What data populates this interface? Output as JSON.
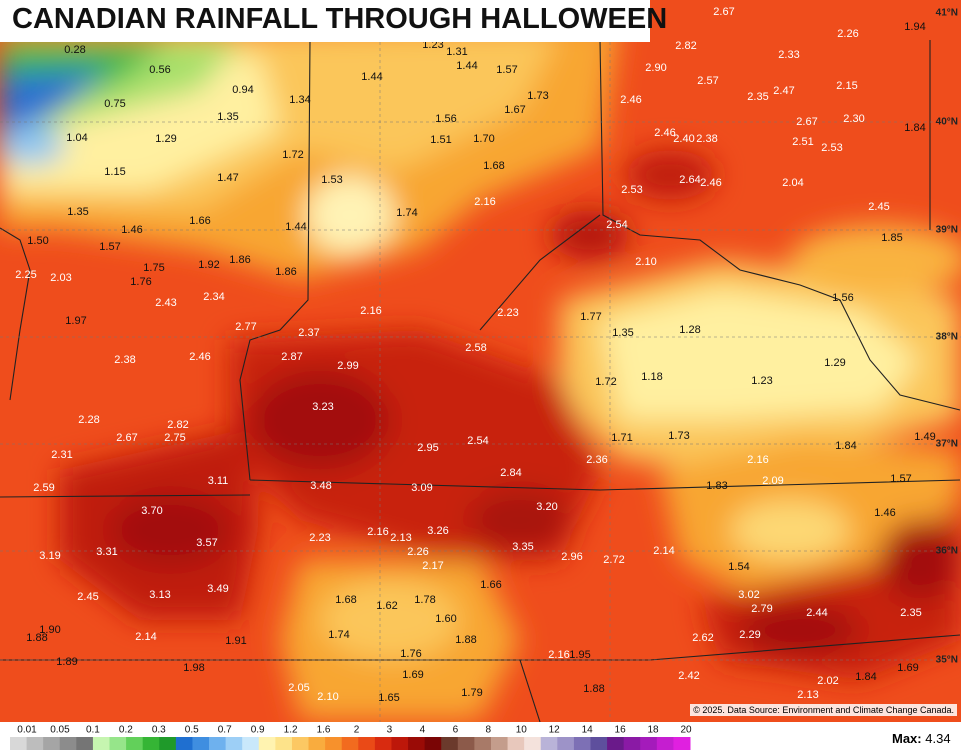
{
  "title": "CANADIAN RAINFALL THROUGH HALLOWEEN",
  "labels": [
    "0.28",
    "0.56",
    "0.94",
    "0.75",
    "1.04",
    "1.29",
    "1.35",
    "1.15",
    "1.47",
    "1.35",
    "1.66",
    "1.46",
    "1.57",
    "1.50",
    "1.23",
    "1.31",
    "1.44",
    "1.44",
    "1.57",
    "1.34",
    "1.73",
    "1.67",
    "1.56",
    "1.51",
    "1.70",
    "1.72",
    "1.68",
    "1.53",
    "2.16",
    "1.74",
    "1.44",
    "2.67",
    "2.82",
    "2.33",
    "2.26",
    "1.94",
    "2.90",
    "2.57",
    "2.35",
    "2.47",
    "2.15",
    "2.46",
    "2.67",
    "2.30",
    "1.84",
    "2.46",
    "2.40",
    "2.38",
    "2.51",
    "2.53",
    "2.53",
    "2.64",
    "2.46",
    "2.04",
    "2.45",
    "1.85",
    "2.54",
    "2.10",
    "1.56",
    "1.75",
    "1.92",
    "1.86",
    "2.25",
    "2.03",
    "1.76",
    "1.86",
    "2.43",
    "2.34",
    "1.97",
    "2.77",
    "2.37",
    "2.16",
    "2.23",
    "1.77",
    "1.35",
    "1.28",
    "2.38",
    "2.46",
    "2.87",
    "2.99",
    "2.58",
    "1.18",
    "1.23",
    "1.29",
    "1.72",
    "3.23",
    "2.28",
    "2.82",
    "2.67",
    "2.75",
    "2.31",
    "2.95",
    "2.54",
    "1.71",
    "1.73",
    "1.84",
    "1.49",
    "2.84",
    "2.36",
    "2.16",
    "3.11",
    "2.59",
    "3.48",
    "3.09",
    "1.83",
    "2.09",
    "1.57",
    "3.70",
    "3.20",
    "1.46",
    "3.26",
    "2.16",
    "2.13",
    "2.23",
    "3.57",
    "3.35",
    "3.19",
    "3.31",
    "2.26",
    "2.96",
    "2.72",
    "2.14",
    "2.17",
    "1.54",
    "1.66",
    "3.49",
    "3.13",
    "2.45",
    "3.02",
    "1.68",
    "1.62",
    "1.78",
    "2.79",
    "2.44",
    "2.35",
    "1.60",
    "1.90",
    "1.88",
    "2.14",
    "1.74",
    "1.91",
    "1.88",
    "2.62",
    "2.29",
    "1.76",
    "2.16",
    "1.95",
    "1.89",
    "1.98",
    "1.69",
    "2.42",
    "1.69",
    "2.02",
    "1.84",
    "2.05",
    "2.10",
    "1.65",
    "1.79",
    "1.88",
    "2.13"
  ],
  "latitudes": [
    "41°N",
    "40°N",
    "39°N",
    "38°N",
    "37°N",
    "36°N",
    "35°N"
  ],
  "legend": {
    "ticks": [
      "0.01",
      "0.05",
      "0.1",
      "0.2",
      "0.3",
      "0.5",
      "0.7",
      "0.9",
      "1.2",
      "1.6",
      "2",
      "3",
      "4",
      "6",
      "8",
      "10",
      "12",
      "14",
      "16",
      "18",
      "20"
    ]
  },
  "max": {
    "label": "Max:",
    "value": "4.34"
  },
  "credit": "© 2025. Data Source: Environment and Climate Change Canada."
}
